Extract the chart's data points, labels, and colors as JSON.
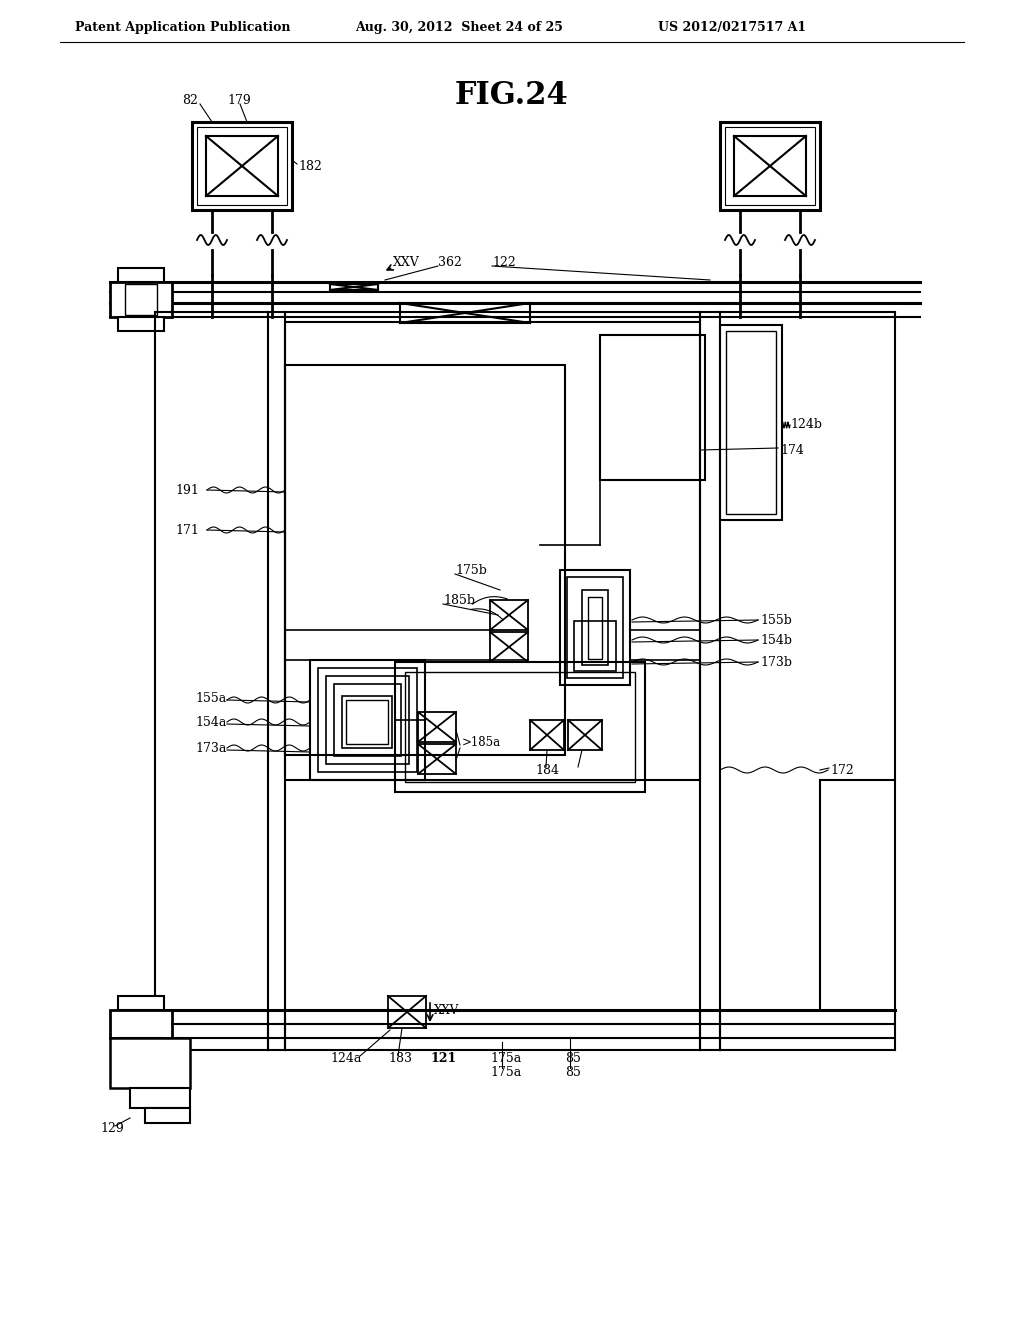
{
  "title": "FIG.24",
  "header_left": "Patent Application Publication",
  "header_mid": "Aug. 30, 2012  Sheet 24 of 25",
  "header_right": "US 2012/0217517 A1",
  "bg_color": "#ffffff"
}
